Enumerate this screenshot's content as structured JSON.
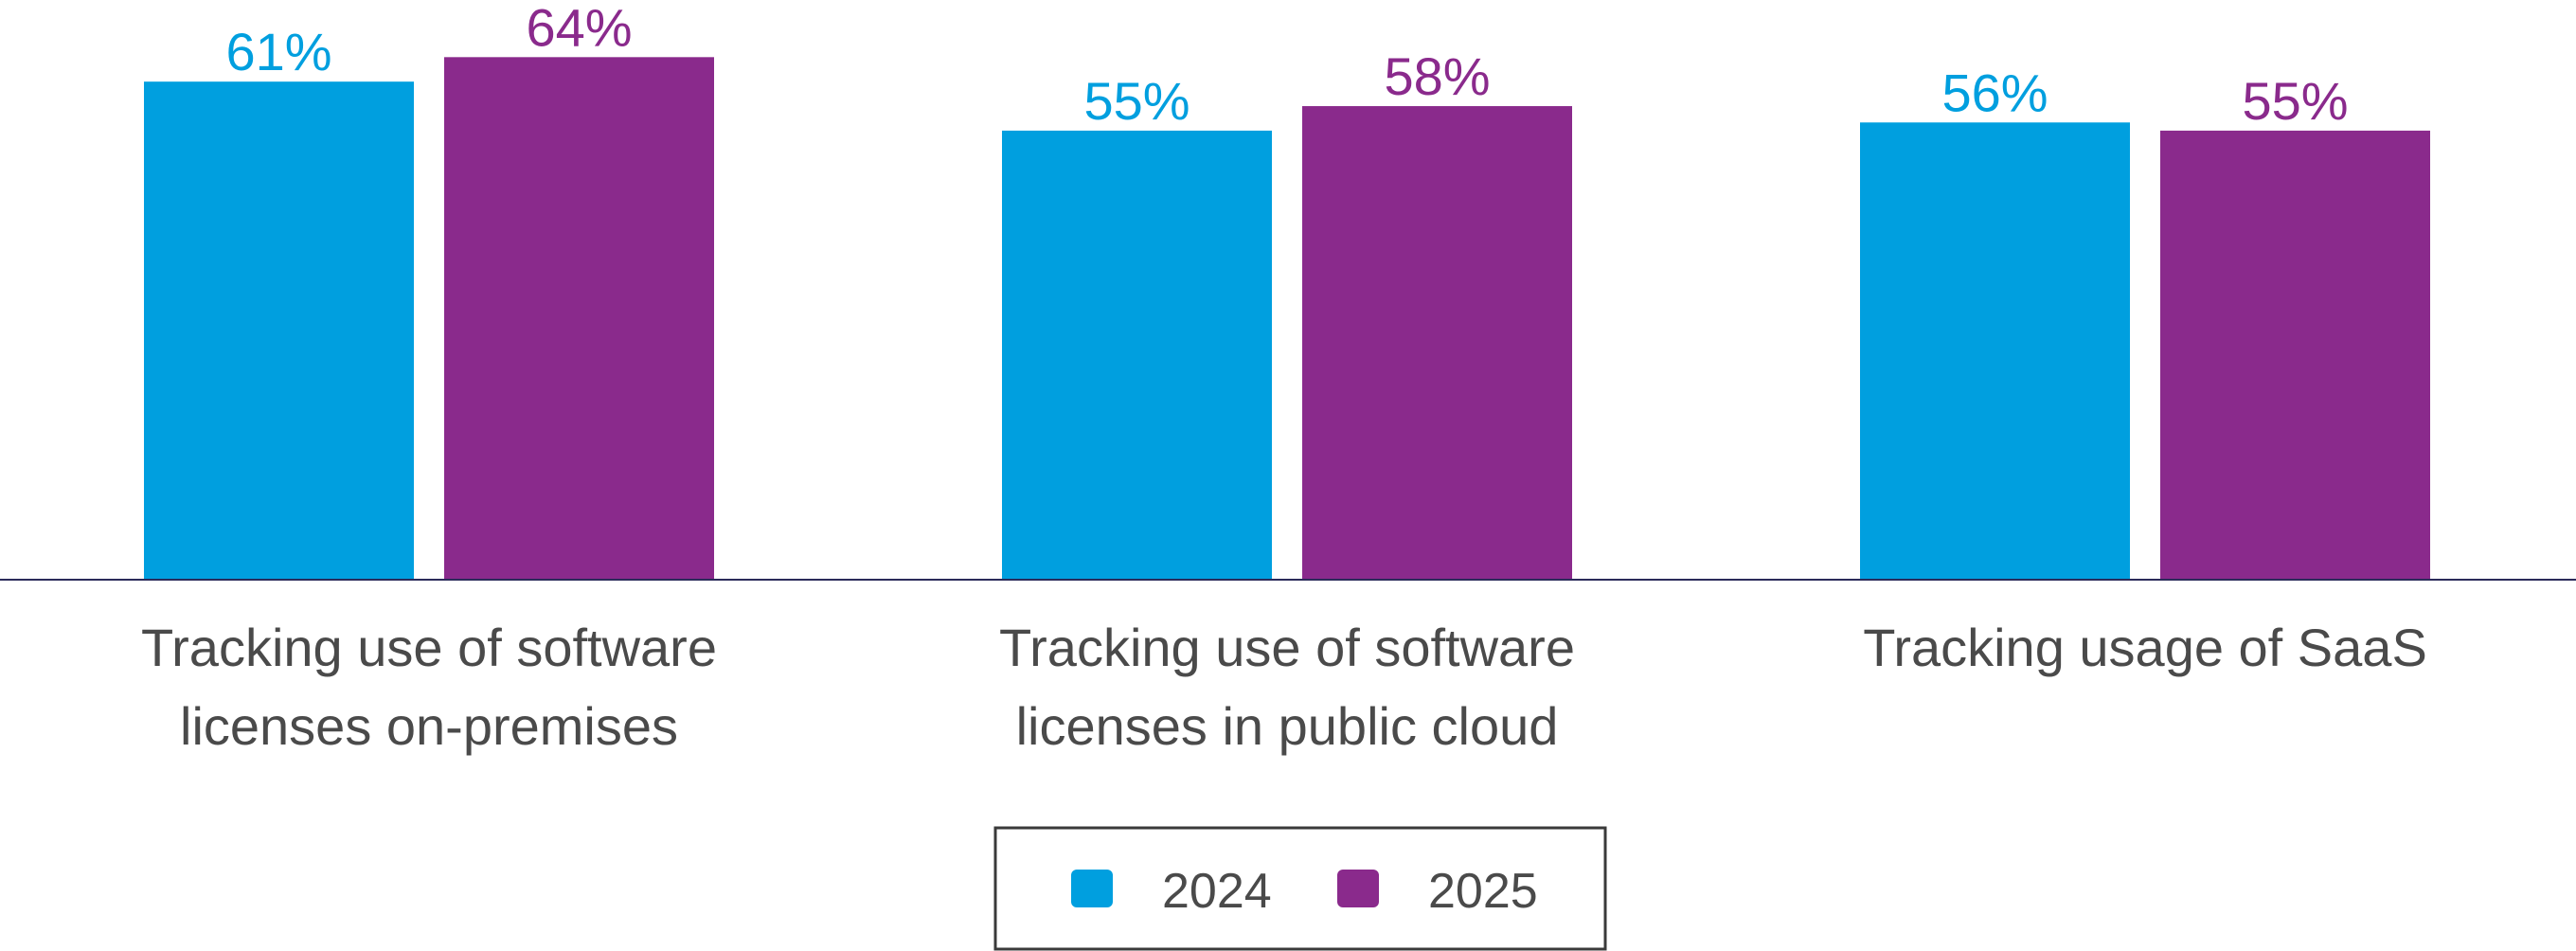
{
  "chart_data": {
    "type": "bar",
    "categories": [
      [
        "Tracking use of software",
        "licenses on-premises"
      ],
      [
        "Tracking use of software",
        "licenses in public cloud"
      ],
      [
        "Tracking usage of SaaS"
      ]
    ],
    "series": [
      {
        "name": "2024",
        "color": "#009fdf",
        "values": [
          61,
          55,
          56
        ],
        "labels": [
          "61%",
          "55%",
          "56%"
        ]
      },
      {
        "name": "2025",
        "color": "#8a2a8c",
        "values": [
          64,
          58,
          55
        ],
        "labels": [
          "64%",
          "58%",
          "55%"
        ]
      }
    ],
    "ylim": [
      0,
      70
    ],
    "grid": false,
    "legend_position": "bottom-center",
    "axis_line_color": "#2b2b5a"
  }
}
